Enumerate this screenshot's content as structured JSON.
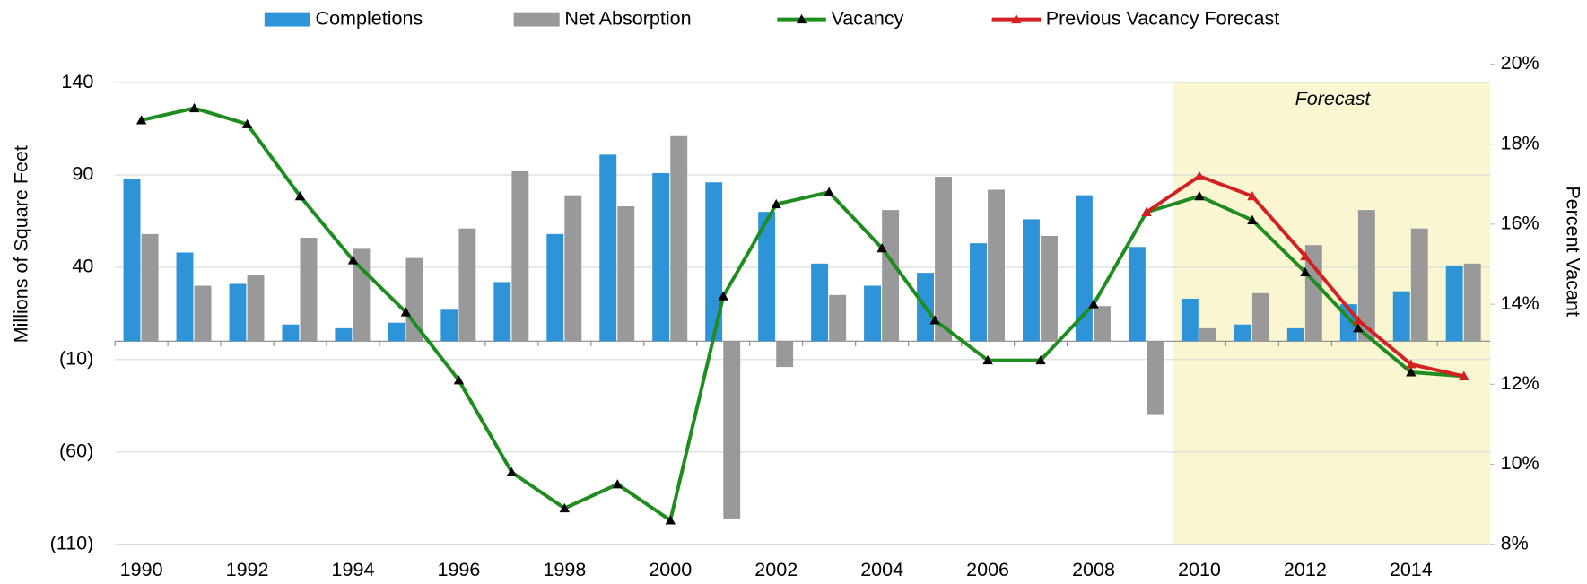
{
  "chart_data": {
    "type": "combo",
    "y_label": "Millions of Square Feet",
    "y2_label": "Percent Vacant",
    "annotation": "Forecast",
    "categories": [
      "1990",
      null,
      "1992",
      null,
      "1994",
      null,
      "1996",
      null,
      "1998",
      null,
      "2000",
      null,
      "2002",
      null,
      "2004",
      null,
      "2006",
      null,
      "2008",
      null,
      "2010",
      null,
      "2012",
      null,
      "2014",
      null
    ],
    "ylim": [
      -110,
      150
    ],
    "yticks": [
      {
        "value": -110,
        "label": "(110)"
      },
      {
        "value": -60,
        "label": "(60)"
      },
      {
        "value": -10,
        "label": "(10)"
      },
      40,
      90,
      140
    ],
    "y2lim": [
      8,
      20
    ],
    "y2ticks": [
      {
        "value": 8,
        "label": "8%"
      },
      {
        "value": 10,
        "label": "10%"
      },
      {
        "value": 12,
        "label": "12%"
      },
      {
        "value": 14,
        "label": "14%"
      },
      {
        "value": 16,
        "label": "16%"
      },
      {
        "value": 18,
        "label": "18%"
      },
      {
        "value": 20,
        "label": "20%"
      }
    ],
    "grid": true,
    "legend": "top",
    "series": [
      {
        "name": "Completions",
        "type": "bar",
        "color": "#2f93d8",
        "values": [
          88,
          48,
          31,
          9,
          7,
          10,
          17,
          32,
          58,
          101,
          91,
          86,
          70,
          42,
          30,
          37,
          53,
          66,
          79,
          51,
          23,
          9,
          7,
          20,
          27,
          41
        ]
      },
      {
        "name": "Net Absorption",
        "type": "bar",
        "color": "#999999",
        "values": [
          58,
          30,
          36,
          56,
          50,
          45,
          61,
          92,
          79,
          73,
          111,
          -96,
          -14,
          25,
          71,
          89,
          82,
          57,
          19,
          -40,
          7,
          26,
          52,
          71,
          61,
          42
        ]
      },
      {
        "name": "Vacancy",
        "type": "line",
        "axis": "y2",
        "color": "#1e8c1e",
        "marker_color": "#000000",
        "values": [
          18.6,
          18.9,
          18.5,
          16.7,
          15.1,
          13.8,
          12.1,
          9.8,
          8.9,
          9.5,
          8.6,
          14.2,
          16.5,
          16.8,
          15.4,
          13.6,
          12.6,
          12.6,
          14.0,
          16.3,
          16.7,
          16.1,
          14.8,
          13.4,
          12.3,
          12.2
        ]
      },
      {
        "name": "Previous Vacancy Forecast",
        "type": "line",
        "axis": "y2",
        "color": "#d42020",
        "marker_color": "#d42020",
        "values": [
          null,
          null,
          null,
          null,
          null,
          null,
          null,
          null,
          null,
          null,
          null,
          null,
          null,
          null,
          null,
          null,
          null,
          null,
          null,
          16.3,
          17.2,
          16.7,
          15.2,
          13.6,
          12.5,
          12.2
        ]
      }
    ]
  }
}
